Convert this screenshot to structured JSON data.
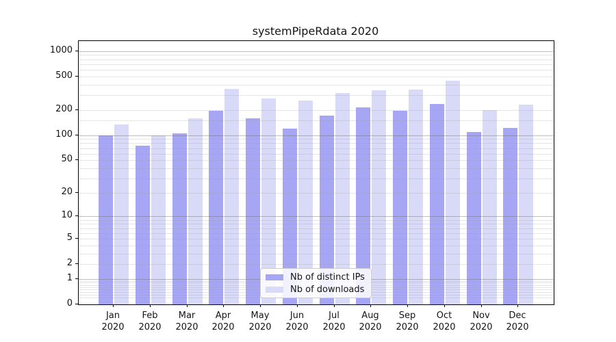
{
  "chart_data": {
    "type": "bar",
    "title": "systemPipeRdata 2020",
    "xlabel": "",
    "ylabel": "",
    "yscale": "log1p",
    "ylim": [
      0,
      1300
    ],
    "grid": "on",
    "legend_position": "lower center",
    "y_ticks": [
      1000,
      500,
      200,
      100,
      50,
      20,
      10,
      5,
      2,
      1,
      0
    ],
    "y_tick_labels": [
      "1000",
      "500",
      "200",
      "100",
      "50",
      "20",
      "10",
      "5",
      "2",
      "1",
      "0"
    ],
    "minor_grid_values": [
      0.2,
      0.3,
      0.4,
      0.5,
      0.6,
      0.7,
      0.8,
      0.9,
      2,
      3,
      4,
      5,
      6,
      7,
      8,
      9,
      20,
      30,
      40,
      50,
      60,
      70,
      80,
      90,
      150,
      200,
      300,
      400,
      500,
      600,
      700,
      800,
      900
    ],
    "major_grid_values": [
      1,
      10,
      100,
      1000
    ],
    "categories": [
      "Jan\n2020",
      "Feb\n2020",
      "Mar\n2020",
      "Apr\n2020",
      "May\n2020",
      "Jun\n2020",
      "Jul\n2020",
      "Aug\n2020",
      "Sep\n2020",
      "Oct\n2020",
      "Nov\n2020",
      "Dec\n2020"
    ],
    "series": [
      {
        "name": "Nb of distinct IPs",
        "color": "#a6a6f4",
        "values": [
          100,
          75,
          105,
          195,
          160,
          120,
          172,
          215,
          195,
          235,
          110,
          122
        ]
      },
      {
        "name": "Nb of downloads",
        "color": "#d9d9f8",
        "values": [
          133,
          100,
          158,
          355,
          275,
          260,
          320,
          340,
          348,
          446,
          199,
          230
        ]
      }
    ]
  },
  "colors": {
    "major_grid": "rgba(110,110,110,0.45)",
    "minor_grid": "rgba(160,160,160,0.28)",
    "axis": "#000000",
    "text": "#141414",
    "legend_border": "#cccccc",
    "legend_bg": "rgba(255,255,255,0.85)"
  }
}
